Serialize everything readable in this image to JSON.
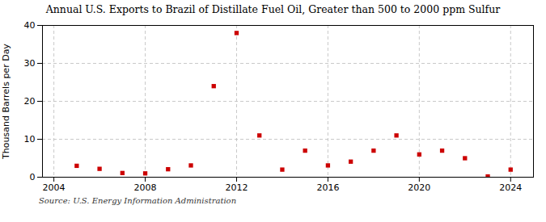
{
  "chart_data": {
    "type": "scatter",
    "title": "Annual U.S. Exports to Brazil of Distillate Fuel Oil, Greater than 500 to 2000 ppm Sulfur",
    "ylabel": "Thousand Barrels per Day",
    "annotations": [
      "Source: U.S. Energy Information Administration"
    ],
    "x": [
      2005,
      2006,
      2007,
      2008,
      2009,
      2010,
      2011,
      2012,
      2013,
      2014,
      2015,
      2016,
      2017,
      2018,
      2019,
      2020,
      2021,
      2022,
      2023,
      2024
    ],
    "values": [
      3.0,
      2.2,
      1.1,
      1.0,
      2.1,
      3.1,
      24.0,
      38.0,
      11.0,
      2.0,
      7.0,
      3.1,
      4.1,
      7.0,
      11.0,
      6.0,
      7.0,
      5.0,
      0.2,
      2.0
    ],
    "color": "#cc0000",
    "marker": "square",
    "xlim": [
      2003.5,
      2025.0
    ],
    "xticks": [
      2004,
      2008,
      2012,
      2016,
      2020,
      2024
    ],
    "ylim": [
      0,
      40
    ],
    "yticks": [
      0,
      10,
      20,
      30,
      40
    ],
    "grid": true
  }
}
